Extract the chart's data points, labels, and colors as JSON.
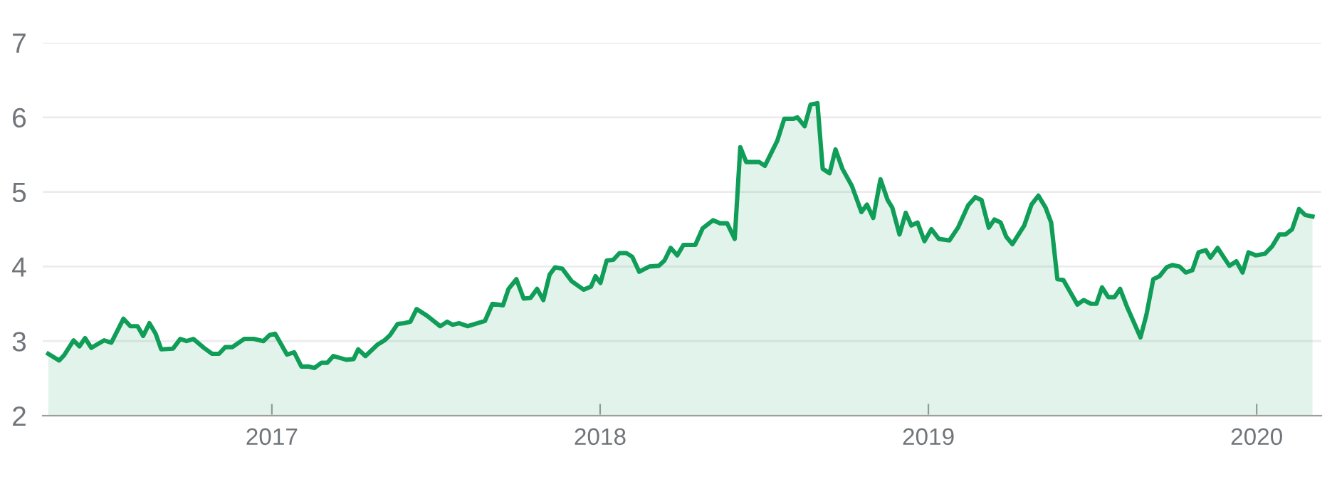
{
  "chart_data": {
    "type": "area",
    "xlim": [
      2016.302,
      2020.197
    ],
    "xticks": [
      2017,
      2018,
      2019,
      2020
    ],
    "ylim": [
      2,
      7
    ],
    "yticks": [
      2,
      3,
      4,
      5,
      6,
      7
    ],
    "grid": "y",
    "line_style": "solid",
    "series": [
      {
        "color": "#0f9d58",
        "x": [
          2016.319,
          2016.352,
          2016.367,
          2016.396,
          2016.414,
          2016.431,
          2016.45,
          2016.489,
          2016.511,
          2016.548,
          2016.569,
          2016.591,
          2016.608,
          2016.627,
          2016.646,
          2016.663,
          2016.699,
          2016.721,
          2016.74,
          2016.761,
          2016.793,
          2016.818,
          2016.839,
          2016.858,
          2016.88,
          2016.916,
          2016.945,
          2016.974,
          2016.993,
          2017.01,
          2017.046,
          2017.068,
          2017.09,
          2017.111,
          2017.13,
          2017.151,
          2017.169,
          2017.187,
          2017.227,
          2017.249,
          2017.263,
          2017.285,
          2017.321,
          2017.343,
          2017.36,
          2017.383,
          2017.403,
          2017.422,
          2017.441,
          2017.473,
          2017.513,
          2017.534,
          2017.55,
          2017.571,
          2017.596,
          2017.649,
          2017.672,
          2017.704,
          2017.721,
          2017.745,
          2017.767,
          2017.788,
          2017.808,
          2017.827,
          2017.846,
          2017.863,
          2017.885,
          2017.914,
          2017.95,
          2017.972,
          2017.986,
          2018.001,
          2018.02,
          2018.04,
          2018.059,
          2018.08,
          2018.098,
          2018.119,
          2018.15,
          2018.179,
          2018.196,
          2018.215,
          2018.235,
          2018.254,
          2018.29,
          2018.312,
          2018.344,
          2018.365,
          2018.387,
          2018.41,
          2018.427,
          2018.445,
          2018.485,
          2018.502,
          2018.54,
          2018.561,
          2018.589,
          2018.601,
          2018.623,
          2018.641,
          2018.662,
          2018.678,
          2018.699,
          2018.717,
          2018.738,
          2018.767,
          2018.796,
          2018.813,
          2018.832,
          2018.854,
          2018.876,
          2018.89,
          2018.912,
          2018.931,
          2018.948,
          2018.967,
          2018.988,
          2019.009,
          2019.032,
          2019.064,
          2019.09,
          2019.121,
          2019.143,
          2019.162,
          2019.184,
          2019.201,
          2019.22,
          2019.237,
          2019.256,
          2019.292,
          2019.314,
          2019.335,
          2019.357,
          2019.374,
          2019.393,
          2019.411,
          2019.433,
          2019.454,
          2019.473,
          2019.495,
          2019.512,
          2019.529,
          2019.548,
          2019.567,
          2019.584,
          2019.606,
          2019.628,
          2019.646,
          2019.664,
          2019.685,
          2019.704,
          2019.726,
          2019.743,
          2019.765,
          2019.784,
          2019.804,
          2019.823,
          2019.845,
          2019.859,
          2019.881,
          2019.917,
          2019.938,
          2019.957,
          2019.975,
          2019.997,
          2020.025,
          2020.047,
          2020.069,
          2020.088,
          2020.108,
          2020.129,
          2020.148,
          2020.17
        ],
        "values": [
          2.83,
          2.74,
          2.81,
          3.01,
          2.93,
          3.04,
          2.91,
          3.01,
          2.98,
          3.3,
          3.2,
          3.2,
          3.07,
          3.24,
          3.1,
          2.89,
          2.9,
          3.03,
          3.0,
          3.03,
          2.91,
          2.83,
          2.83,
          2.92,
          2.92,
          3.03,
          3.03,
          3.0,
          3.08,
          3.1,
          2.82,
          2.85,
          2.66,
          2.66,
          2.64,
          2.71,
          2.71,
          2.8,
          2.75,
          2.76,
          2.89,
          2.8,
          2.95,
          3.01,
          3.08,
          3.23,
          3.24,
          3.26,
          3.43,
          3.34,
          3.2,
          3.26,
          3.22,
          3.24,
          3.2,
          3.27,
          3.5,
          3.48,
          3.7,
          3.83,
          3.57,
          3.58,
          3.7,
          3.55,
          3.89,
          3.99,
          3.97,
          3.8,
          3.69,
          3.73,
          3.87,
          3.78,
          4.08,
          4.09,
          4.18,
          4.18,
          4.13,
          3.93,
          4.0,
          4.01,
          4.08,
          4.25,
          4.15,
          4.29,
          4.29,
          4.51,
          4.62,
          4.58,
          4.58,
          4.37,
          5.6,
          5.4,
          5.4,
          5.35,
          5.69,
          5.98,
          5.98,
          6.0,
          5.88,
          6.17,
          6.19,
          5.31,
          5.25,
          5.57,
          5.31,
          5.08,
          4.73,
          4.83,
          4.65,
          5.17,
          4.89,
          4.79,
          4.43,
          4.72,
          4.55,
          4.59,
          4.34,
          4.5,
          4.37,
          4.35,
          4.52,
          4.82,
          4.93,
          4.89,
          4.52,
          4.63,
          4.59,
          4.4,
          4.3,
          4.55,
          4.83,
          4.95,
          4.79,
          4.59,
          3.83,
          3.82,
          3.65,
          3.49,
          3.55,
          3.5,
          3.5,
          3.72,
          3.59,
          3.59,
          3.7,
          3.45,
          3.23,
          3.05,
          3.35,
          3.83,
          3.87,
          3.99,
          4.02,
          4.0,
          3.92,
          3.95,
          4.19,
          4.22,
          4.12,
          4.25,
          4.01,
          4.07,
          3.92,
          4.19,
          4.15,
          4.17,
          4.27,
          4.43,
          4.43,
          4.5,
          4.77,
          4.69,
          4.67
        ]
      }
    ]
  }
}
